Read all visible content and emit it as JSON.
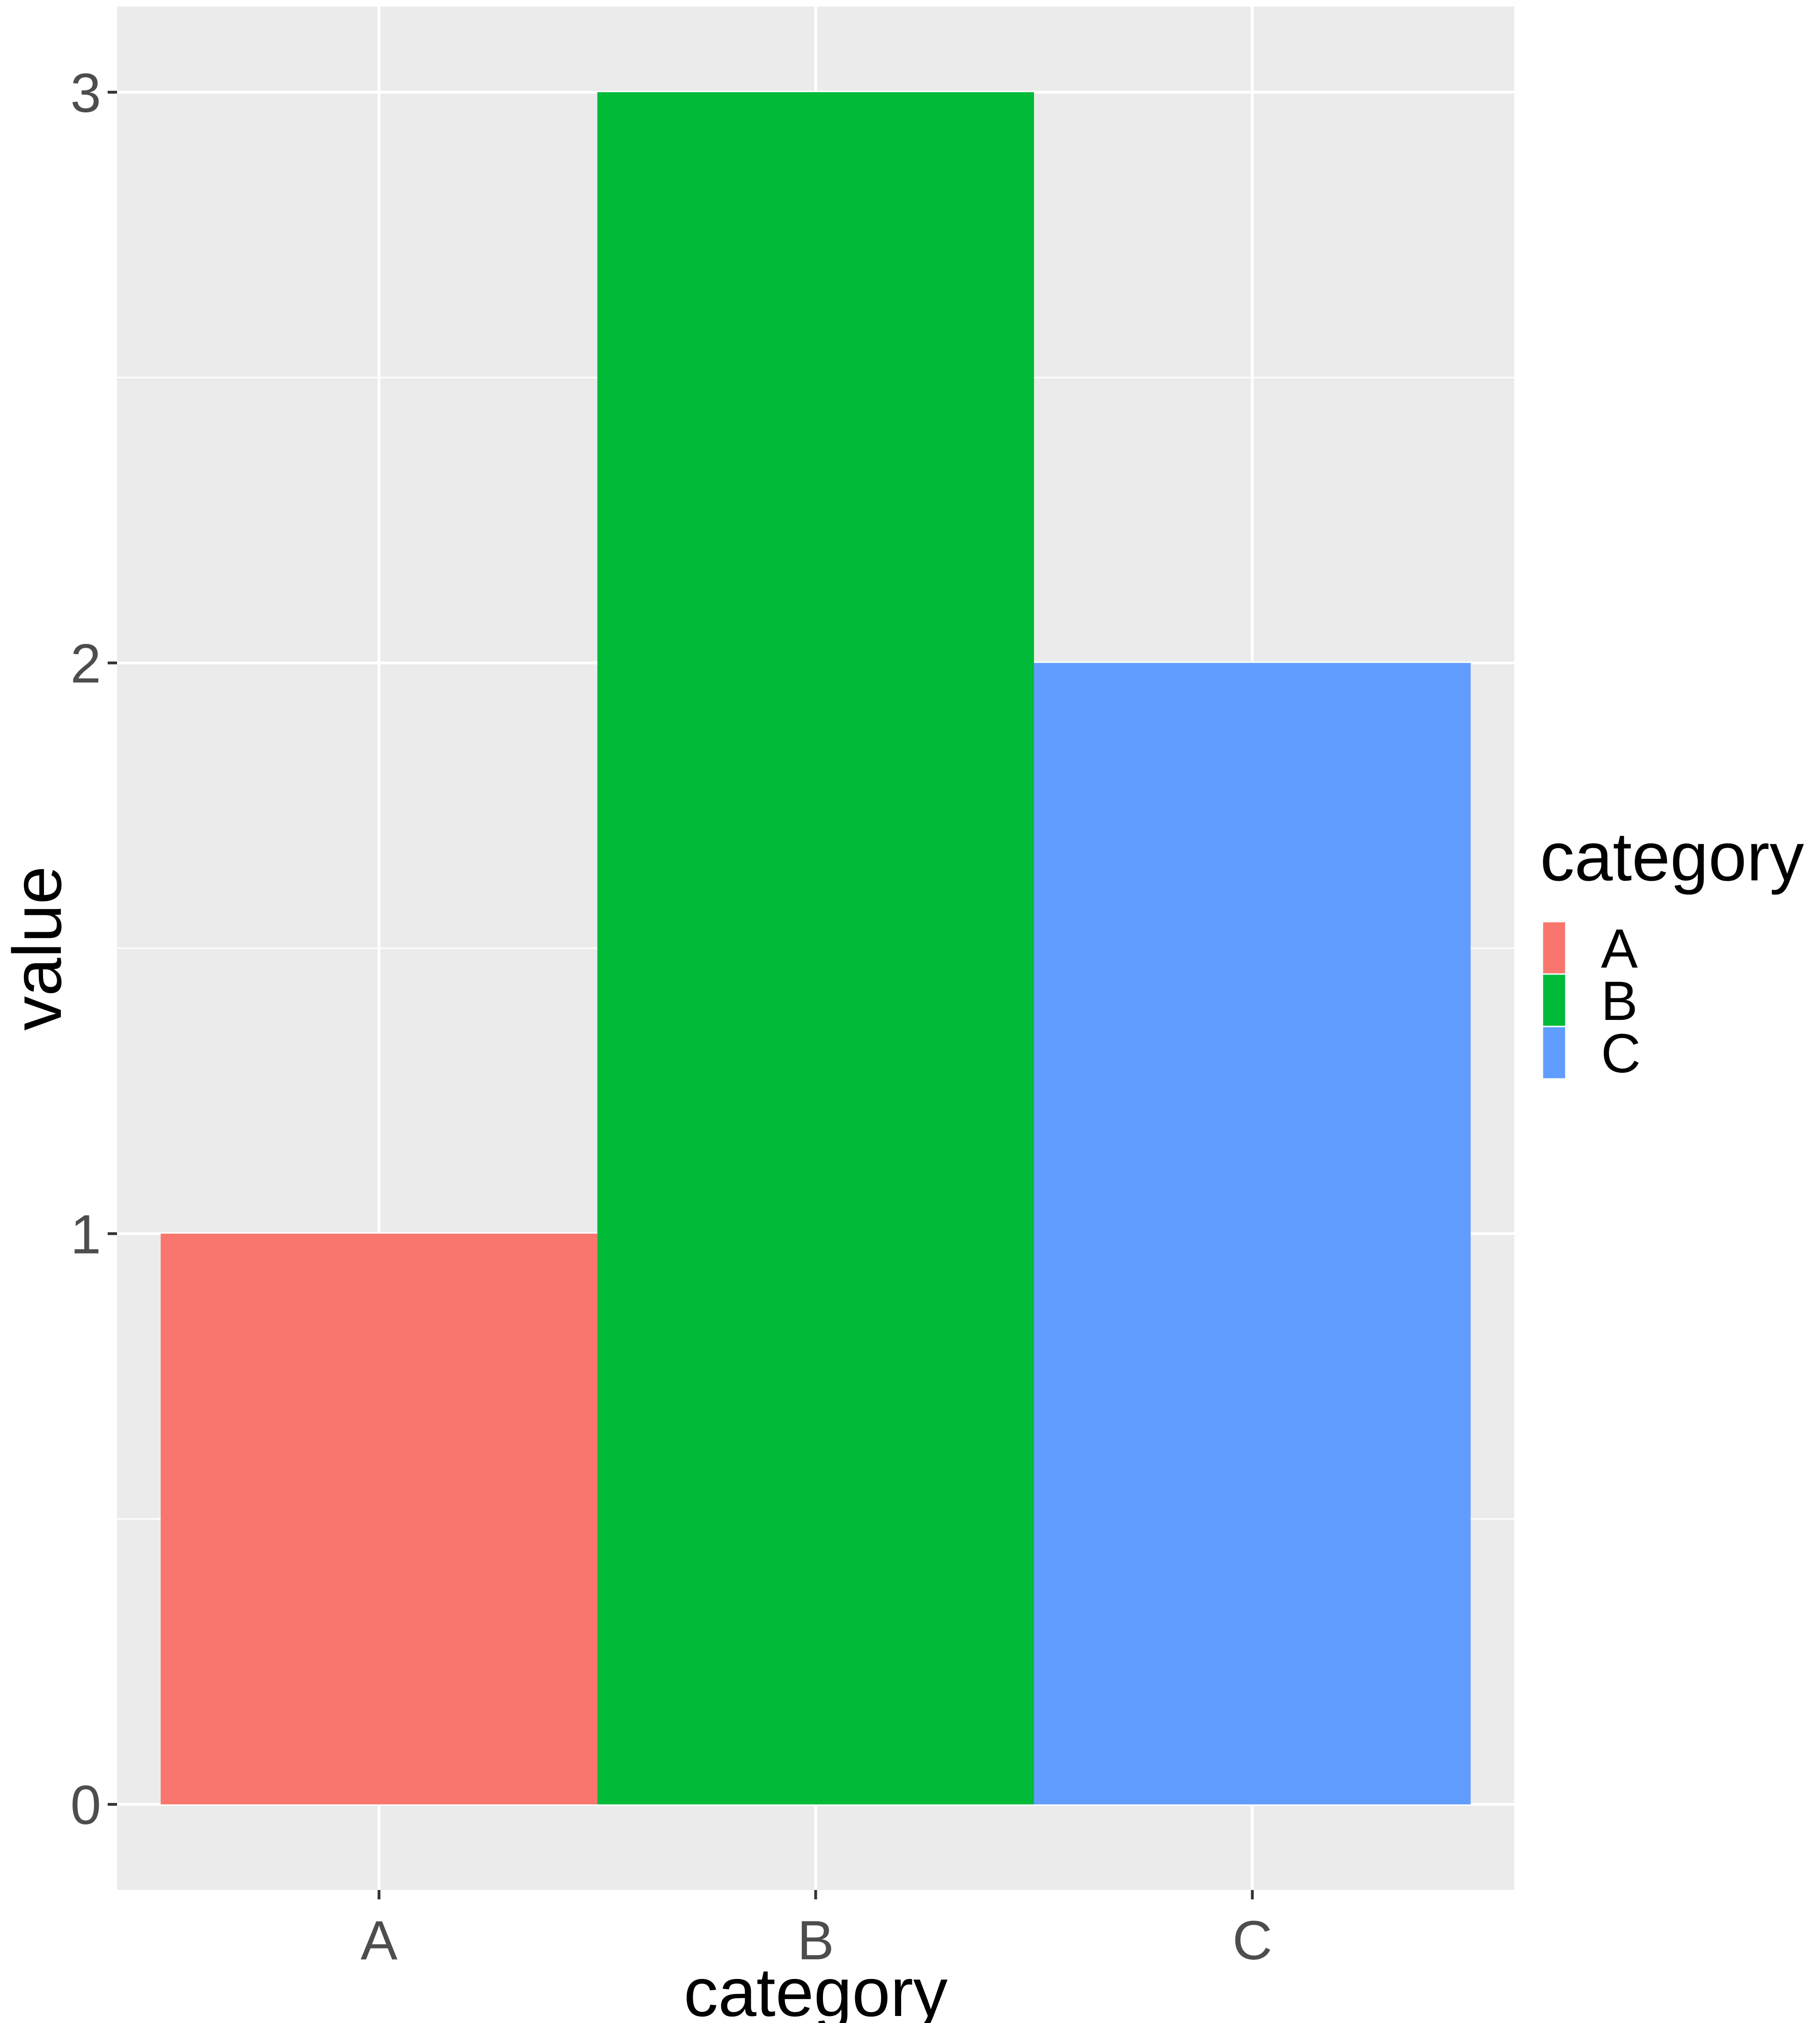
{
  "chart_data": {
    "type": "bar",
    "title": "",
    "xlabel": "category",
    "ylabel": "value",
    "categories": [
      "A",
      "B",
      "C"
    ],
    "values": [
      1,
      3,
      2
    ],
    "colors": [
      "#F8766D",
      "#00BA38",
      "#619CFF"
    ],
    "ylim": [
      -0.15,
      3.15
    ],
    "yticks": [
      0,
      1,
      2,
      3
    ],
    "grid": true,
    "panel_background": "#EBEBEB",
    "gridline_color": "#FFFFFF",
    "legend": {
      "title": "category",
      "position": "right",
      "entries": [
        "A",
        "B",
        "C"
      ]
    }
  }
}
